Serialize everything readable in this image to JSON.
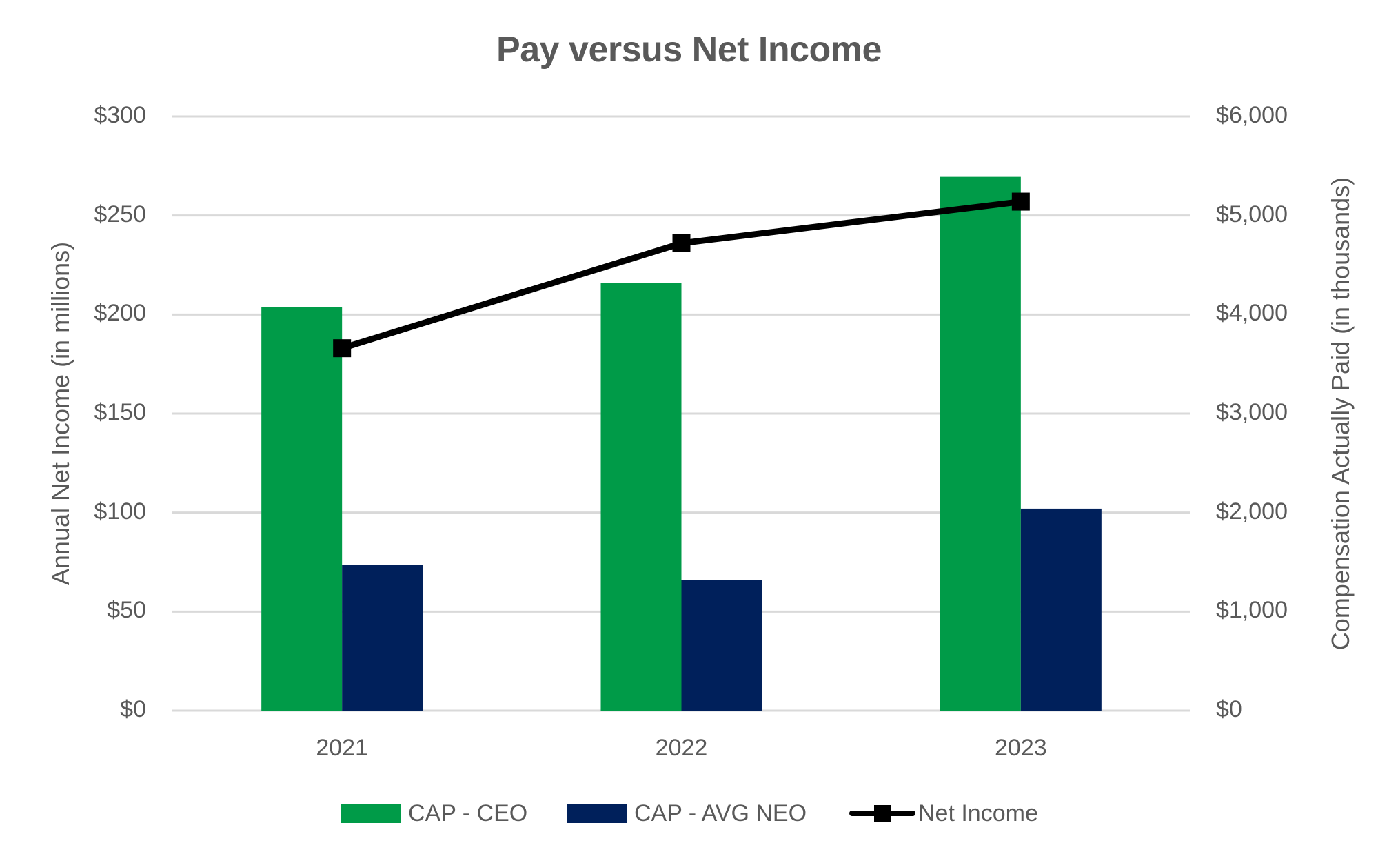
{
  "chart_data": {
    "type": "bar",
    "title": "Pay versus Net Income",
    "categories": [
      "2021",
      "2022",
      "2023"
    ],
    "xlabel": "",
    "ylabel_left": "Annual Net Income (in millions)",
    "ylabel_right": "Compensation Actually Paid (in thousands)",
    "ylim_left": [
      0,
      300
    ],
    "ylim_right": [
      0,
      6000
    ],
    "left_ticks": [
      "$0",
      "$50",
      "$100",
      "$150",
      "$200",
      "$250",
      "$300"
    ],
    "left_tick_values": [
      0,
      50,
      100,
      150,
      200,
      250,
      300
    ],
    "right_ticks": [
      "$0",
      "$1,000",
      "$2,000",
      "$3,000",
      "$4,000",
      "$5,000",
      "$6,000"
    ],
    "grid": true,
    "legend_position": "bottom",
    "series": [
      {
        "name": "CAP - CEO",
        "type": "bar",
        "axis": "right",
        "color": "#009B48",
        "values": [
          4075,
          4320,
          5390
        ]
      },
      {
        "name": "CAP - AVG NEO",
        "type": "bar",
        "axis": "right",
        "color": "#00205B",
        "values": [
          1470,
          1320,
          2040
        ]
      },
      {
        "name": "Net Income",
        "type": "line",
        "axis": "left",
        "color": "#000000",
        "marker": "square",
        "values": [
          183,
          236,
          257
        ]
      }
    ]
  },
  "legend": {
    "items": [
      {
        "label": "CAP - CEO",
        "color": "#009B48",
        "kind": "swatch"
      },
      {
        "label": "CAP - AVG NEO",
        "color": "#00205B",
        "kind": "swatch"
      },
      {
        "label": "Net Income",
        "color": "#000000",
        "kind": "line-marker"
      }
    ]
  },
  "colors": {
    "text": "#595959",
    "grid": "#D9D9D9",
    "ceo": "#009B48",
    "neo": "#00205B",
    "line": "#000000"
  }
}
